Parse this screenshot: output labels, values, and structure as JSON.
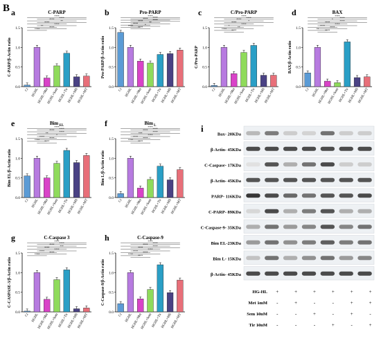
{
  "figure_label": "B",
  "colors": {
    "Ct": "#5b9bd5",
    "HGHL": "#b77be0",
    "HGHL+Met": "#d943c8",
    "HGHL+Sem": "#8fdb5b",
    "HGHL+Tir": "#2a9fc6",
    "HGHL+MS": "#4a4284",
    "HGHL+MT": "#e86f79"
  },
  "chart_data": [
    {
      "panel": "a",
      "type": "bar",
      "title": "C-PARP",
      "ylabel": "C-PARP/β-Actin ratio",
      "categories": [
        "Ct",
        "HGHL",
        "HGHL+Met",
        "HGHL+Sem",
        "HGHL+Tir",
        "HGHL+MS",
        "HGHL+MT"
      ],
      "values": [
        0.04,
        1.0,
        0.22,
        0.53,
        0.85,
        0.25,
        0.27
      ],
      "ylim": [
        0,
        1.5
      ],
      "ticks": [
        "0.0",
        "0.5",
        "1.0",
        "1.5"
      ],
      "sig_labels": [
        "****",
        "****",
        "****",
        "**",
        "****",
        "****",
        "**",
        "****",
        "****"
      ]
    },
    {
      "panel": "b",
      "type": "bar",
      "title": "Pro-PARP",
      "ylabel": "Pro-PARP/β-Actin ratio",
      "categories": [
        "Ct",
        "HGHL",
        "HGHL+Met",
        "HGHL+Sem",
        "HGHL+Tir",
        "HGHL+MS",
        "HGHL+MT"
      ],
      "values": [
        1.38,
        1.0,
        0.65,
        0.6,
        0.82,
        0.84,
        0.93
      ],
      "ylim": [
        0,
        1.5
      ],
      "ticks": [
        "0.0",
        "0.5",
        "1.0",
        "1.5"
      ],
      "sig_labels": [
        "****",
        "****",
        "****",
        "****",
        "****",
        "**",
        "****",
        "*",
        "****",
        "****"
      ]
    },
    {
      "panel": "c",
      "type": "bar",
      "title": "C/Pro-PARP",
      "ylabel": "C/Pro-PARP",
      "categories": [
        "Ct",
        "HGHL",
        "HGHL+Met",
        "HGHL+Sem",
        "HGHL+Tir",
        "HGHL+MS",
        "HGHL+MT"
      ],
      "values": [
        0.03,
        1.0,
        0.33,
        0.87,
        1.05,
        0.29,
        0.29
      ],
      "ylim": [
        0,
        1.5
      ],
      "ticks": [
        "0.0",
        "0.5",
        "1.0",
        "1.5"
      ],
      "sig_labels": [
        "****",
        "****",
        "****",
        "*",
        "****",
        "****",
        "*",
        "**",
        "****",
        "****"
      ]
    },
    {
      "panel": "d",
      "type": "bar",
      "title": "BAX",
      "ylabel": "BAX/β-Actin ratio",
      "categories": [
        "Ct",
        "HGHL",
        "HGHL+Met",
        "HGHL+Sem",
        "HGHL+Tir",
        "HGHL+MS",
        "HGHL+MT"
      ],
      "values": [
        0.35,
        1.0,
        0.14,
        0.1,
        1.14,
        0.23,
        0.25
      ],
      "ylim": [
        0,
        1.5
      ],
      "ticks": [
        "0.0",
        "0.5",
        "1.0",
        "1.5"
      ],
      "sig_labels": [
        "****",
        "****",
        "*",
        "****",
        "****",
        "****",
        "****",
        "****",
        "**",
        "****"
      ]
    },
    {
      "panel": "e",
      "type": "bar",
      "title": "Bim",
      "title_sub": "EL",
      "ylabel": "Bim EL/β-Actin ratio",
      "categories": [
        "Ct",
        "HGHL",
        "HGHL+Met",
        "HGHL+Sem",
        "HGHL+Tir",
        "HGHL+MS",
        "HGHL+MT"
      ],
      "values": [
        0.55,
        1.0,
        0.5,
        0.87,
        1.2,
        0.89,
        1.07
      ],
      "ylim": [
        0,
        1.5
      ],
      "ticks": [
        "0.0",
        "0.5",
        "1.0",
        "1.5"
      ],
      "sig_labels": [
        "****",
        "****",
        "****",
        "****",
        "**",
        "*",
        "****",
        "****",
        "****",
        "****"
      ]
    },
    {
      "panel": "f",
      "type": "bar",
      "title": "Bim",
      "title_sub": "L",
      "ylabel": "Bim L/β-Actin ratio",
      "categories": [
        "Ct",
        "HGHL",
        "HGHL+Met",
        "HGHL+Sem",
        "HGHL+Tir",
        "HGHL+MS",
        "HGHL+MT"
      ],
      "values": [
        0.1,
        1.0,
        0.24,
        0.46,
        0.8,
        0.45,
        0.71
      ],
      "ylim": [
        0,
        1.5
      ],
      "ticks": [
        "0.0",
        "0.5",
        "1.0",
        "1.5"
      ],
      "sig_labels": [
        "****",
        "****",
        "****",
        "****",
        "***",
        "****",
        "****",
        "****",
        "****",
        "****"
      ]
    },
    {
      "panel": "g",
      "type": "bar",
      "title": "C-Caspase 3",
      "ylabel": "C-CASPASE-3/β-Actin ratio",
      "categories": [
        "Ct",
        "HGHL",
        "HGHL+Met",
        "HGHL+Sem",
        "HGHL+Tir",
        "HGHL+MS",
        "HGHL+MT"
      ],
      "values": [
        0.02,
        1.0,
        0.32,
        0.82,
        1.07,
        0.08,
        0.1
      ],
      "ylim": [
        0,
        1.5
      ],
      "ticks": [
        "0.0",
        "0.5",
        "1.0",
        "1.5"
      ],
      "sig_labels": [
        "****",
        "****",
        "****",
        "***",
        "****",
        "****",
        "****",
        "****",
        "****"
      ]
    },
    {
      "panel": "h",
      "type": "bar",
      "title": "C-Caspase-9",
      "ylabel": "C-Caspase-9/β-Actin ratio",
      "categories": [
        "Ct",
        "HGHL",
        "HGHL+Met",
        "HGHL+Sem",
        "HGHL+Tir",
        "HGHL+MS",
        "HGHL+MT"
      ],
      "values": [
        0.21,
        1.0,
        0.33,
        0.57,
        1.2,
        0.49,
        0.81
      ],
      "ylim": [
        0,
        1.5
      ],
      "ticks": [
        "0.0",
        "0.5",
        "1.0",
        "1.5"
      ],
      "sig_labels": [
        "****",
        "****",
        "****",
        "****",
        "****",
        "****",
        "****",
        "****",
        "****",
        "****"
      ]
    }
  ],
  "blot": {
    "panel": "i",
    "rows": [
      {
        "label": "Bax- 20KDa",
        "intensity": [
          0.25,
          0.55,
          0.15,
          0.12,
          0.6,
          0.15,
          0.15
        ]
      },
      {
        "label": "β-Actin- 45KDa",
        "intensity": [
          0.8,
          0.8,
          0.8,
          0.8,
          0.8,
          0.8,
          0.8
        ]
      },
      {
        "label": "C-Caspase- 17KDa",
        "intensity": [
          0.05,
          0.75,
          0.3,
          0.6,
          0.8,
          0.15,
          0.15
        ]
      },
      {
        "label": "β-Actin- 45KDa",
        "intensity": [
          0.75,
          0.75,
          0.75,
          0.75,
          0.75,
          0.75,
          0.75
        ]
      },
      {
        "label": "PARP- 116KDa",
        "intensity": [
          0.9,
          0.8,
          0.65,
          0.6,
          0.75,
          0.75,
          0.8
        ]
      },
      {
        "label": "C-PARP- 89KDa",
        "intensity": [
          0.1,
          0.8,
          0.3,
          0.55,
          0.75,
          0.3,
          0.3
        ]
      },
      {
        "label": "C-Caspase-9- 35KDa",
        "intensity": [
          0.3,
          0.6,
          0.4,
          0.5,
          0.75,
          0.5,
          0.6
        ]
      },
      {
        "label": "Bim EL-23KDa",
        "intensity": [
          0.4,
          0.6,
          0.45,
          0.55,
          0.7,
          0.55,
          0.6
        ]
      },
      {
        "label": "Bim L- 15KDa",
        "intensity": [
          0.2,
          0.6,
          0.3,
          0.45,
          0.6,
          0.4,
          0.5
        ]
      },
      {
        "label": "β-Actin- 45KDa",
        "intensity": [
          0.8,
          0.8,
          0.8,
          0.8,
          0.8,
          0.8,
          0.8
        ]
      }
    ],
    "treatments": [
      {
        "label": "HG-HL",
        "signs": [
          "-",
          "+",
          "+",
          "+",
          "+",
          "+",
          "+"
        ]
      },
      {
        "label": "Met 1mM",
        "signs": [
          "-",
          "-",
          "+",
          "-",
          "-",
          "+",
          "+"
        ]
      },
      {
        "label": "Sem 10nM",
        "signs": [
          "-",
          "-",
          "-",
          "+",
          "-",
          "+",
          "-"
        ]
      },
      {
        "label": "Tir 10nM",
        "signs": [
          "-",
          "-",
          "-",
          "-",
          "+",
          "-",
          "+"
        ]
      }
    ]
  }
}
